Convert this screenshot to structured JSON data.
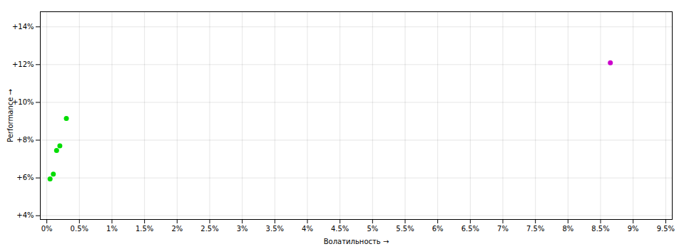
{
  "chart_data": {
    "type": "scatter",
    "xlabel": "Волатильность",
    "ylabel": "Performance",
    "xlim": [
      -0.001,
      0.096
    ],
    "ylim": [
      0.038,
      0.148
    ],
    "xticks": [
      {
        "value": 0.0,
        "label": "0%"
      },
      {
        "value": 0.005,
        "label": "0.5%"
      },
      {
        "value": 0.01,
        "label": "1%"
      },
      {
        "value": 0.015,
        "label": "1.5%"
      },
      {
        "value": 0.02,
        "label": "2%"
      },
      {
        "value": 0.025,
        "label": "2.5%"
      },
      {
        "value": 0.03,
        "label": "3%"
      },
      {
        "value": 0.035,
        "label": "3.5%"
      },
      {
        "value": 0.04,
        "label": "4%"
      },
      {
        "value": 0.045,
        "label": "4.5%"
      },
      {
        "value": 0.05,
        "label": "5%"
      },
      {
        "value": 0.055,
        "label": "5.5%"
      },
      {
        "value": 0.06,
        "label": "6%"
      },
      {
        "value": 0.065,
        "label": "6.5%"
      },
      {
        "value": 0.07,
        "label": "7%"
      },
      {
        "value": 0.075,
        "label": "7.5%"
      },
      {
        "value": 0.08,
        "label": "8%"
      },
      {
        "value": 0.085,
        "label": "8.5%"
      },
      {
        "value": 0.09,
        "label": "9%"
      },
      {
        "value": 0.095,
        "label": "9.5%"
      }
    ],
    "yticks": [
      {
        "value": 0.04,
        "label": "+4%"
      },
      {
        "value": 0.06,
        "label": "+6%"
      },
      {
        "value": 0.08,
        "label": "+8%"
      },
      {
        "value": 0.1,
        "label": "+10%"
      },
      {
        "value": 0.12,
        "label": "+12%"
      },
      {
        "value": 0.14,
        "label": "+14%"
      }
    ],
    "grid": true,
    "series": [
      {
        "color": "#00dd00",
        "x": [
          0.003,
          0.002,
          0.0015,
          0.001,
          0.0005
        ],
        "values": [
          0.0915,
          0.077,
          0.0745,
          0.062,
          0.0595
        ]
      },
      {
        "color": "#cc00cc",
        "x": [
          0.0865
        ],
        "values": [
          0.121
        ]
      }
    ]
  }
}
